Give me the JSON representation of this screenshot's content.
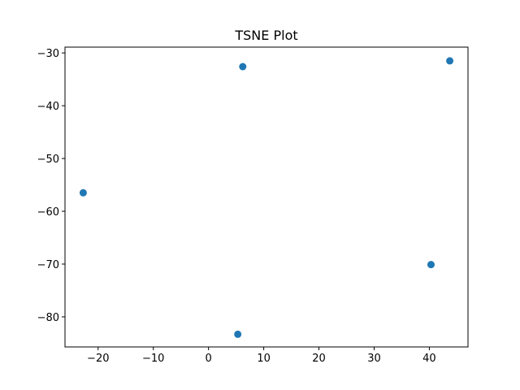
{
  "chart_data": {
    "type": "scatter",
    "title": "TSNE Plot",
    "xlabel": "",
    "ylabel": "",
    "xlim": [
      -26.0,
      47.0
    ],
    "ylim": [
      -85.7,
      -28.9
    ],
    "x_ticks": [
      -20,
      -10,
      0,
      10,
      20,
      30,
      40
    ],
    "y_ticks": [
      -80,
      -70,
      -60,
      -50,
      -40,
      -30
    ],
    "grid": false,
    "legend": "none",
    "series": [
      {
        "color": "#1f77b4",
        "points": [
          {
            "x": 6.2,
            "y": -32.6
          },
          {
            "x": 43.7,
            "y": -31.5
          },
          {
            "x": -22.7,
            "y": -56.5
          },
          {
            "x": 40.3,
            "y": -70.1
          },
          {
            "x": 5.3,
            "y": -83.3
          }
        ]
      }
    ]
  }
}
